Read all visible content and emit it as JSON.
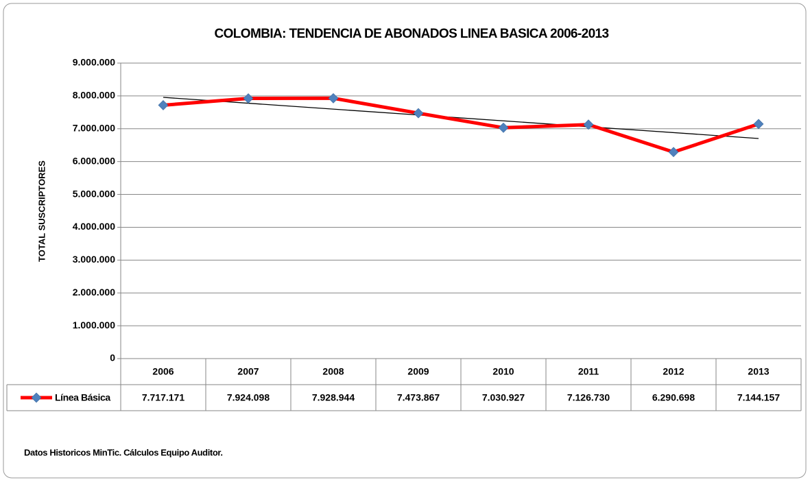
{
  "chart_data": {
    "type": "line",
    "title": "COLOMBIA: TENDENCIA DE ABONADOS LINEA BASICA 2006-2013",
    "y_label": "TOTAL SUSCRIPTORES",
    "note": "Datos Historicos MinTic. Cálculos Equipo Auditor.",
    "categories": [
      "2006",
      "2007",
      "2008",
      "2009",
      "2010",
      "2011",
      "2012",
      "2013"
    ],
    "series": [
      {
        "name": "Línea Básica",
        "color": "#ff0000",
        "marker_color": "#4f81bd",
        "values": [
          7717171,
          7924098,
          7928944,
          7473867,
          7030927,
          7126730,
          6290698,
          7144157
        ],
        "value_labels": [
          "7.717.171",
          "7.924.098",
          "7.928.944",
          "7.473.867",
          "7.030.927",
          "7.126.730",
          "6.290.698",
          "7.144.157"
        ]
      }
    ],
    "ylim": [
      0,
      9000000
    ],
    "yticks": [
      0,
      {
        "value": 1000000,
        "label": "1.000.000"
      },
      {
        "value": 2000000,
        "label": "2.000.000"
      },
      {
        "value": 3000000,
        "label": "3.000.000"
      },
      {
        "value": 4000000,
        "label": "4.000.000"
      },
      {
        "value": 5000000,
        "label": "5.000.000"
      },
      {
        "value": 6000000,
        "label": "6.000.000"
      },
      {
        "value": 7000000,
        "label": "7.000.000"
      },
      {
        "value": 8000000,
        "label": "8.000.000"
      },
      {
        "value": 9000000,
        "label": "9.000.000"
      }
    ],
    "grid": true,
    "trendline": "linear",
    "data_table": true
  }
}
